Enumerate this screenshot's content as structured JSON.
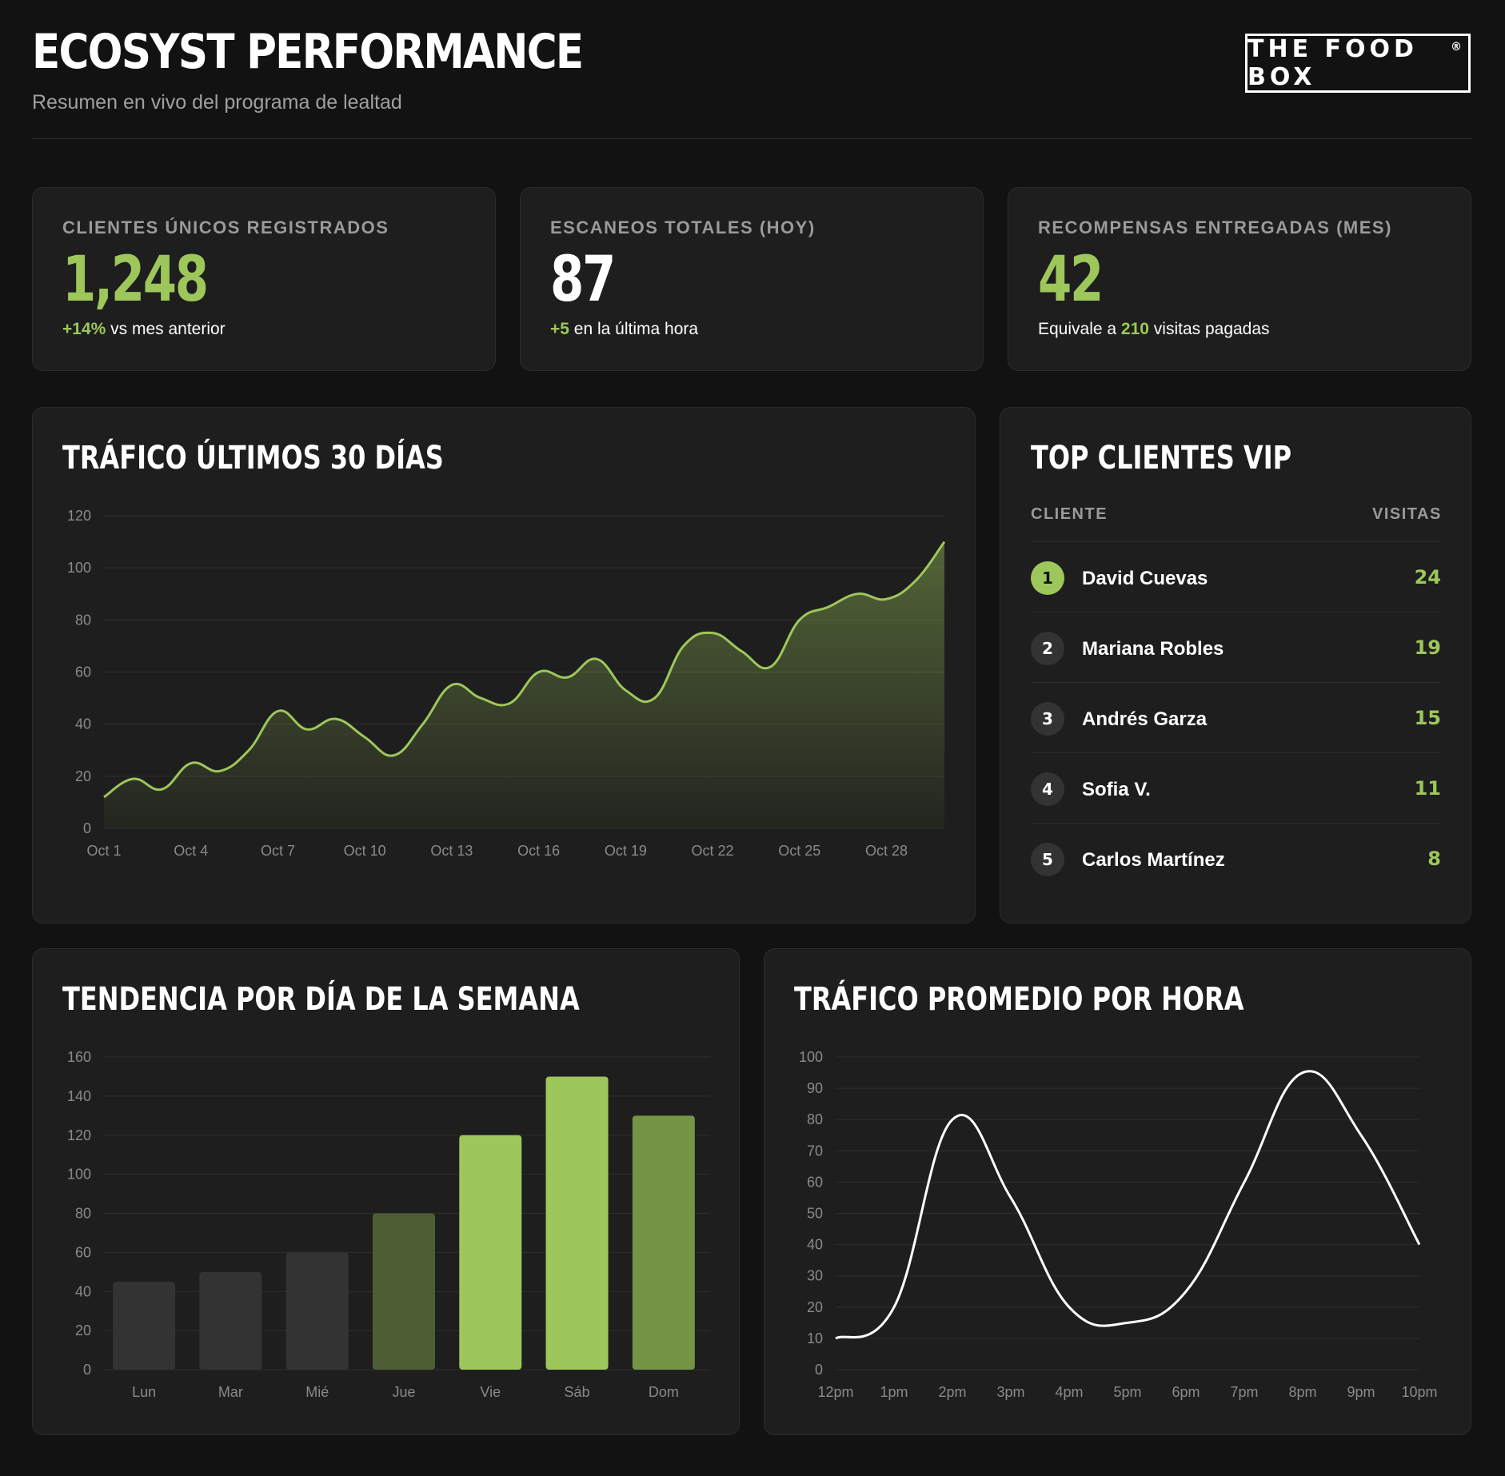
{
  "header": {
    "title": "ECOSYST PERFORMANCE",
    "subtitle": "Resumen en vivo del programa de lealtad",
    "brand": "THE FOOD BOX",
    "brand_mark": "®"
  },
  "kpis": [
    {
      "label": "CLIENTES ÚNICOS REGISTRADOS",
      "value": "1,248",
      "value_color": "#9dc75a",
      "sub_highlight": "+14%",
      "sub_text": " vs mes anterior"
    },
    {
      "label": "ESCANEOS TOTALES (HOY)",
      "value": "87",
      "value_color": "#ffffff",
      "sub_highlight": "+5",
      "sub_text": " en la última hora"
    },
    {
      "label": "RECOMPENSAS ENTREGADAS (MES)",
      "value": "42",
      "value_color": "#9dc75a",
      "sub_prefix": "Equivale a ",
      "sub_highlight": "210",
      "sub_text": " visitas pagadas"
    }
  ],
  "vip": {
    "title": "TOP CLIENTES VIP",
    "col_client": "CLIENTE",
    "col_visits": "VISITAS",
    "rows": [
      {
        "rank": "1",
        "name": "David Cuevas",
        "visits": "24"
      },
      {
        "rank": "2",
        "name": "Mariana Robles",
        "visits": "19"
      },
      {
        "rank": "3",
        "name": "Andrés Garza",
        "visits": "15"
      },
      {
        "rank": "4",
        "name": "Sofia V.",
        "visits": "11"
      },
      {
        "rank": "5",
        "name": "Carlos Martínez",
        "visits": "8"
      }
    ]
  },
  "colors": {
    "accent": "#9dc75a",
    "background": "#121212",
    "card": "#1e1e1e"
  },
  "chart_data": [
    {
      "type": "area",
      "title": "TRÁFICO ÚLTIMOS 30 DÍAS",
      "x_ticks": [
        "Oct 1",
        "Oct 4",
        "Oct 7",
        "Oct 10",
        "Oct 13",
        "Oct 16",
        "Oct 19",
        "Oct 22",
        "Oct 25",
        "Oct 28"
      ],
      "x": [
        "Oct 1",
        "Oct 2",
        "Oct 3",
        "Oct 4",
        "Oct 5",
        "Oct 6",
        "Oct 7",
        "Oct 8",
        "Oct 9",
        "Oct 10",
        "Oct 11",
        "Oct 12",
        "Oct 13",
        "Oct 14",
        "Oct 15",
        "Oct 16",
        "Oct 17",
        "Oct 18",
        "Oct 19",
        "Oct 20",
        "Oct 21",
        "Oct 22",
        "Oct 23",
        "Oct 24",
        "Oct 25",
        "Oct 26",
        "Oct 27",
        "Oct 28",
        "Oct 29",
        "Oct 30"
      ],
      "values": [
        12,
        19,
        15,
        25,
        22,
        30,
        45,
        38,
        42,
        35,
        28,
        40,
        55,
        50,
        48,
        60,
        58,
        65,
        53,
        50,
        70,
        75,
        68,
        62,
        80,
        85,
        90,
        88,
        95,
        110
      ],
      "ylim": [
        0,
        120
      ],
      "y_ticks": [
        0,
        20,
        40,
        60,
        80,
        100,
        120
      ],
      "grid": true,
      "color": "#9dc75a"
    },
    {
      "type": "bar",
      "title": "TENDENCIA POR DÍA DE LA SEMANA",
      "categories": [
        "Lun",
        "Mar",
        "Mié",
        "Jue",
        "Vie",
        "Sáb",
        "Dom"
      ],
      "values": [
        45,
        50,
        60,
        80,
        120,
        150,
        130
      ],
      "bar_colors": [
        "#333333",
        "#333333",
        "#333333",
        "#4d5e35",
        "#9dc75a",
        "#9dc75a",
        "#759545"
      ],
      "ylim": [
        0,
        160
      ],
      "y_ticks": [
        0,
        20,
        40,
        60,
        80,
        100,
        120,
        140,
        160
      ],
      "grid": true
    },
    {
      "type": "line",
      "title": "TRÁFICO PROMEDIO POR HORA",
      "categories": [
        "12pm",
        "1pm",
        "2pm",
        "3pm",
        "4pm",
        "5pm",
        "6pm",
        "7pm",
        "8pm",
        "9pm",
        "10pm"
      ],
      "values": [
        10,
        20,
        80,
        55,
        20,
        15,
        25,
        60,
        95,
        75,
        40
      ],
      "ylim": [
        0,
        100
      ],
      "y_ticks": [
        0,
        10,
        20,
        30,
        40,
        50,
        60,
        70,
        80,
        90,
        100
      ],
      "grid": true,
      "color": "#ffffff"
    }
  ]
}
